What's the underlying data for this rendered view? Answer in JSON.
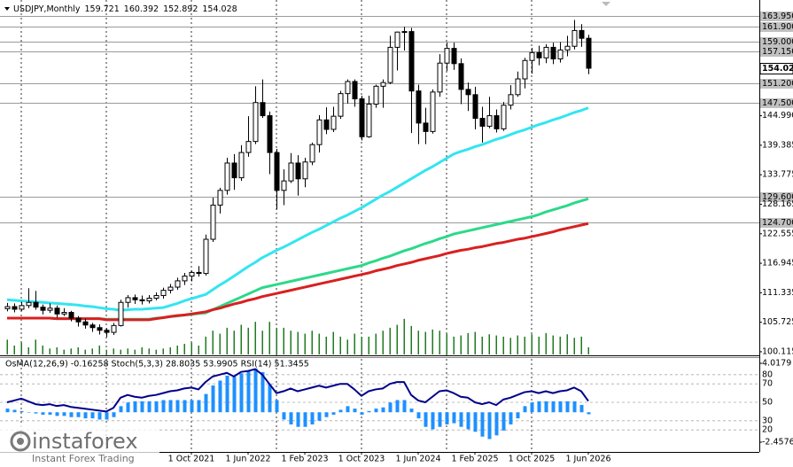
{
  "chart_data": {
    "type": "candlestick",
    "title": "USDJPY,Monthly",
    "ohlc_header": [
      159.721,
      160.392,
      152.892,
      154.028
    ],
    "categories": [
      null,
      null,
      null,
      null,
      null,
      null,
      null,
      null,
      null,
      null,
      null,
      null,
      null,
      null,
      null,
      null,
      null,
      null,
      null,
      null,
      null,
      null,
      null,
      null,
      null,
      null,
      "1 Oct 2021",
      null,
      null,
      null,
      null,
      null,
      null,
      null,
      "1 Jun 2022",
      null,
      null,
      null,
      null,
      null,
      null,
      null,
      "1 Feb 2023",
      null,
      null,
      null,
      null,
      null,
      null,
      null,
      "1 Oct 2023",
      null,
      null,
      null,
      null,
      null,
      null,
      null,
      "1 Jun 2024",
      null,
      null,
      null,
      null,
      null,
      null,
      null,
      "1 Feb 2025",
      null,
      null,
      null,
      null,
      null,
      null,
      null,
      "1 Oct 2025",
      null,
      null,
      null,
      null,
      null,
      null,
      null,
      "1 Jun 2026"
    ],
    "ohlc": [
      [
        108.3,
        109.4,
        107.8,
        108.7
      ],
      [
        108.7,
        109.3,
        107.6,
        108.2
      ],
      [
        108.2,
        109.6,
        107.9,
        108.9
      ],
      [
        108.9,
        112.2,
        108.4,
        109.5
      ],
      [
        109.5,
        111.7,
        108.1,
        108.6
      ],
      [
        108.6,
        109.1,
        107.2,
        108.0
      ],
      [
        108.0,
        109.3,
        107.5,
        108.4
      ],
      [
        108.4,
        108.9,
        106.6,
        107.3
      ],
      [
        107.3,
        108.4,
        106.9,
        107.6
      ],
      [
        107.6,
        107.9,
        105.9,
        106.5
      ],
      [
        106.5,
        106.9,
        104.9,
        105.8
      ],
      [
        105.8,
        106.4,
        104.5,
        105.2
      ],
      [
        105.2,
        105.6,
        103.9,
        104.7
      ],
      [
        104.7,
        105.3,
        103.4,
        104.2
      ],
      [
        104.2,
        104.6,
        102.9,
        103.8
      ],
      [
        103.8,
        105.6,
        103.3,
        105.1
      ],
      [
        105.1,
        110.0,
        104.9,
        109.5
      ],
      [
        109.5,
        110.9,
        108.5,
        110.4
      ],
      [
        110.4,
        111.0,
        109.2,
        110.0
      ],
      [
        110.0,
        110.8,
        109.1,
        109.8
      ],
      [
        109.8,
        110.9,
        109.3,
        110.3
      ],
      [
        110.3,
        111.4,
        109.9,
        110.8
      ],
      [
        110.8,
        112.3,
        110.2,
        111.8
      ],
      [
        111.8,
        113.0,
        111.2,
        112.4
      ],
      [
        112.4,
        114.2,
        111.9,
        113.6
      ],
      [
        113.6,
        115.1,
        112.8,
        114.5
      ],
      [
        114.5,
        115.5,
        113.5,
        115.2
      ],
      [
        115.2,
        116.4,
        114.4,
        115.0
      ],
      [
        115.0,
        122.4,
        114.6,
        121.5
      ],
      [
        121.5,
        129.4,
        121.0,
        128.0
      ],
      [
        128.0,
        131.3,
        126.4,
        130.8
      ],
      [
        130.8,
        137.0,
        130.0,
        136.0
      ],
      [
        136.0,
        137.7,
        130.9,
        133.2
      ],
      [
        133.2,
        139.4,
        132.6,
        138.0
      ],
      [
        138.0,
        144.9,
        137.2,
        140.1
      ],
      [
        140.1,
        150.6,
        139.6,
        147.5
      ],
      [
        147.5,
        151.9,
        144.6,
        145.0
      ],
      [
        145.0,
        145.8,
        133.9,
        138.0
      ],
      [
        138.0,
        138.7,
        127.2,
        130.8
      ],
      [
        130.8,
        134.8,
        128.0,
        132.6
      ],
      [
        132.6,
        137.9,
        132.2,
        136.0
      ],
      [
        136.0,
        137.5,
        129.8,
        133.0
      ],
      [
        133.0,
        137.0,
        131.4,
        136.2
      ],
      [
        136.2,
        139.9,
        135.6,
        139.5
      ],
      [
        139.5,
        145.1,
        138.0,
        144.2
      ],
      [
        144.2,
        146.6,
        141.5,
        142.4
      ],
      [
        142.4,
        146.7,
        141.9,
        144.9
      ],
      [
        144.9,
        149.7,
        144.4,
        149.2
      ],
      [
        149.2,
        151.9,
        147.3,
        151.5
      ],
      [
        151.5,
        151.9,
        146.7,
        148.2
      ],
      [
        148.2,
        148.8,
        140.3,
        141.0
      ],
      [
        141.0,
        148.8,
        140.8,
        147.2
      ],
      [
        147.2,
        150.9,
        146.5,
        150.6
      ],
      [
        150.6,
        151.9,
        146.5,
        151.3
      ],
      [
        151.3,
        160.2,
        151.0,
        158.0
      ],
      [
        158.0,
        161.0,
        153.6,
        160.9
      ],
      [
        160.9,
        161.9,
        157.4,
        161.0
      ],
      [
        161.0,
        161.7,
        141.7,
        149.7
      ],
      [
        149.7,
        150.9,
        139.6,
        143.6
      ],
      [
        143.6,
        146.5,
        139.6,
        142.0
      ],
      [
        142.0,
        150.0,
        141.6,
        149.5
      ],
      [
        149.5,
        156.7,
        148.6,
        155.0
      ],
      [
        155.0,
        158.9,
        153.5,
        157.8
      ],
      [
        157.8,
        158.9,
        153.7,
        154.9
      ],
      [
        154.9,
        155.9,
        147.2,
        150.0
      ],
      [
        150.0,
        151.3,
        145.9,
        149.0
      ],
      [
        149.0,
        150.5,
        142.4,
        144.5
      ],
      [
        144.5,
        146.7,
        139.9,
        143.0
      ],
      [
        143.0,
        148.6,
        142.6,
        145.0
      ],
      [
        145.0,
        146.2,
        141.8,
        142.5
      ],
      [
        142.5,
        147.6,
        142.1,
        147.0
      ],
      [
        147.0,
        150.8,
        146.2,
        149.0
      ],
      [
        149.0,
        153.4,
        148.6,
        152.0
      ],
      [
        152.0,
        156.0,
        150.2,
        155.5
      ],
      [
        155.5,
        157.9,
        153.0,
        157.0
      ],
      [
        157.0,
        158.3,
        154.6,
        156.0
      ],
      [
        156.0,
        158.6,
        155.0,
        158.0
      ],
      [
        158.0,
        158.9,
        154.8,
        155.8
      ],
      [
        155.8,
        159.0,
        155.1,
        157.5
      ],
      [
        157.5,
        160.2,
        156.3,
        158.2
      ],
      [
        158.2,
        163.2,
        157.6,
        161.2
      ],
      [
        161.2,
        162.4,
        158.1,
        159.721
      ],
      [
        159.721,
        160.392,
        152.892,
        154.028
      ]
    ],
    "up_color": "#ffffff",
    "down_color": "#000000",
    "ylim": [
      99.6,
      167.0
    ],
    "yticks": [
      {
        "value": 144.99,
        "label": "144.990"
      },
      139.385,
      133.775,
      128.165,
      122.555,
      116.945,
      111.335,
      105.725,
      100.115
    ],
    "levels": [
      {
        "value": 163.95,
        "label": "163.950"
      },
      {
        "value": 161.9,
        "label": "161.900"
      },
      {
        "value": 159.0,
        "label": "159.000"
      },
      {
        "value": 157.15,
        "label": "157.150"
      },
      {
        "value": 151.2,
        "label": "151.200"
      },
      {
        "value": 147.5,
        "label": "147.500"
      },
      {
        "value": 129.6,
        "label": "129.600"
      },
      {
        "value": 124.7,
        "label": "124.700"
      }
    ],
    "current_price": 154.028,
    "ma_lines": [
      {
        "color": "#33e5f0",
        "values": [
          110.0,
          109.9,
          109.8,
          109.7,
          109.6,
          109.5,
          109.4,
          109.3,
          109.2,
          109.1,
          109.0,
          108.8,
          108.7,
          108.5,
          108.3,
          108.2,
          108.0,
          108.1,
          108.2,
          108.2,
          108.3,
          108.4,
          108.5,
          108.9,
          109.3,
          109.8,
          110.2,
          110.6,
          111.0,
          111.9,
          112.8,
          113.6,
          114.5,
          115.4,
          116.3,
          117.1,
          118.0,
          118.7,
          119.4,
          120.0,
          120.7,
          121.4,
          122.1,
          122.8,
          123.4,
          124.1,
          124.8,
          125.5,
          126.1,
          126.8,
          127.5,
          128.3,
          129.1,
          129.9,
          130.6,
          131.4,
          132.2,
          133.0,
          133.8,
          134.6,
          135.3,
          136.1,
          136.9,
          137.7,
          138.2,
          138.6,
          139.1,
          139.5,
          140.0,
          140.5,
          140.9,
          141.4,
          141.9,
          142.3,
          142.8,
          143.3,
          143.7,
          144.2,
          144.6,
          145.1,
          145.6,
          146.0,
          146.5
        ]
      },
      {
        "color": "#2bd98a",
        "values": [
          106.5,
          106.5,
          106.5,
          106.5,
          106.5,
          106.5,
          106.5,
          106.4,
          106.4,
          106.4,
          106.4,
          106.4,
          106.4,
          106.4,
          106.3,
          106.3,
          106.3,
          106.3,
          106.3,
          106.3,
          106.3,
          106.5,
          106.6,
          106.8,
          106.9,
          107.1,
          107.2,
          107.4,
          107.5,
          108.1,
          108.7,
          109.3,
          109.9,
          110.5,
          111.1,
          111.7,
          112.3,
          112.6,
          112.9,
          113.2,
          113.5,
          113.8,
          114.1,
          114.4,
          114.7,
          115.0,
          115.3,
          115.6,
          115.9,
          116.2,
          116.5,
          117.0,
          117.4,
          117.9,
          118.3,
          118.8,
          119.3,
          119.7,
          120.2,
          120.7,
          121.1,
          121.6,
          122.0,
          122.5,
          122.8,
          123.1,
          123.4,
          123.7,
          124.0,
          124.3,
          124.6,
          124.9,
          125.2,
          125.5,
          125.8,
          126.2,
          126.7,
          127.1,
          127.5,
          127.9,
          128.4,
          128.8,
          129.2
        ]
      },
      {
        "color": "#d92020",
        "values": [
          106.5,
          106.5,
          106.5,
          106.5,
          106.5,
          106.5,
          106.5,
          106.4,
          106.4,
          106.4,
          106.4,
          106.4,
          106.4,
          106.4,
          106.2,
          106.2,
          106.2,
          106.2,
          106.2,
          106.2,
          106.2,
          106.4,
          106.6,
          106.8,
          107.0,
          107.1,
          107.3,
          107.5,
          107.7,
          108.1,
          108.4,
          108.8,
          109.2,
          109.5,
          109.9,
          110.2,
          110.6,
          110.9,
          111.2,
          111.5,
          111.8,
          112.1,
          112.4,
          112.7,
          113.0,
          113.3,
          113.6,
          113.9,
          114.2,
          114.5,
          114.8,
          115.1,
          115.5,
          115.8,
          116.1,
          116.5,
          116.8,
          117.1,
          117.5,
          117.8,
          118.1,
          118.4,
          118.8,
          119.1,
          119.4,
          119.6,
          119.9,
          120.1,
          120.4,
          120.7,
          120.9,
          121.2,
          121.5,
          121.7,
          122.0,
          122.3,
          122.6,
          122.9,
          123.3,
          123.6,
          123.9,
          124.2,
          124.5
        ]
      }
    ],
    "volumes": [
      25,
      15,
      20,
      12,
      25,
      15,
      10,
      12,
      8,
      10,
      12,
      8,
      10,
      15,
      8,
      10,
      8,
      10,
      8,
      12,
      10,
      8,
      10,
      12,
      15,
      18,
      20,
      15,
      30,
      40,
      35,
      45,
      40,
      50,
      45,
      55,
      40,
      55,
      45,
      45,
      40,
      38,
      35,
      40,
      35,
      30,
      38,
      30,
      25,
      35,
      30,
      30,
      35,
      40,
      45,
      50,
      60,
      48,
      40,
      38,
      42,
      40,
      35,
      30,
      32,
      36,
      38,
      30,
      34,
      32,
      30,
      28,
      32,
      30,
      34,
      30,
      36,
      32,
      30,
      34,
      28,
      30,
      12
    ],
    "volume_color": "#207a20",
    "volume_ylim": [
      0,
      100
    ],
    "indicator_title": "OsMA(12,26,9) -0.16258  Stoch(5,3,3) 28.8035 53.9905  RSI(14) 51.3455",
    "osma": [
      0.3,
      0.2,
      0.1,
      0.0,
      -0.1,
      -0.2,
      -0.2,
      -0.3,
      -0.3,
      -0.4,
      -0.4,
      -0.5,
      -0.5,
      -0.6,
      -0.6,
      -0.4,
      0.5,
      0.8,
      0.9,
      0.9,
      0.9,
      0.9,
      1.0,
      1.0,
      1.0,
      1.0,
      1.0,
      1.0,
      1.5,
      2.2,
      2.6,
      3.0,
      2.9,
      3.2,
      3.4,
      3.6,
      3.3,
      2.3,
      1.0,
      -0.6,
      -1.0,
      -1.2,
      -1.2,
      -1.0,
      -0.7,
      -0.4,
      -0.2,
      0.2,
      0.5,
      0.3,
      -0.2,
      0.1,
      0.3,
      0.4,
      0.8,
      1.0,
      1.0,
      0.3,
      -0.5,
      -1.2,
      -1.4,
      -1.2,
      -1.0,
      -0.9,
      -1.2,
      -1.4,
      -1.6,
      -2.0,
      -2.2,
      -1.9,
      -1.5,
      -1.0,
      -0.5,
      0.5,
      0.8,
      0.9,
      0.9,
      0.9,
      0.9,
      0.9,
      0.9,
      0.6,
      -0.16258
    ],
    "osma_color": "#1e90ff",
    "osma_ylim": [
      -2.45768,
      4.0179
    ],
    "osma_ticks": [
      4.0179,
      -2.45768
    ],
    "rsi": [
      50,
      52,
      54,
      51,
      48,
      47,
      48,
      46,
      47,
      45,
      44,
      43,
      42,
      41,
      40,
      44,
      55,
      58,
      56,
      55,
      57,
      58,
      60,
      62,
      63,
      65,
      66,
      64,
      72,
      78,
      80,
      82,
      78,
      83,
      84,
      86,
      80,
      70,
      60,
      62,
      65,
      62,
      64,
      66,
      68,
      66,
      68,
      70,
      70,
      64,
      57,
      62,
      64,
      65,
      70,
      72,
      72,
      58,
      52,
      50,
      56,
      62,
      63,
      60,
      56,
      55,
      50,
      48,
      50,
      47,
      53,
      55,
      58,
      61,
      62,
      60,
      62,
      60,
      62,
      63,
      66,
      62,
      51.3455
    ],
    "rsi_color": "#00008b",
    "rsi_ylim": [
      0,
      100
    ],
    "rsi_levels": [
      80,
      70,
      50,
      30,
      20
    ],
    "logo": {
      "name": "instaforex",
      "tagline": "Instant Forex Trading"
    }
  }
}
